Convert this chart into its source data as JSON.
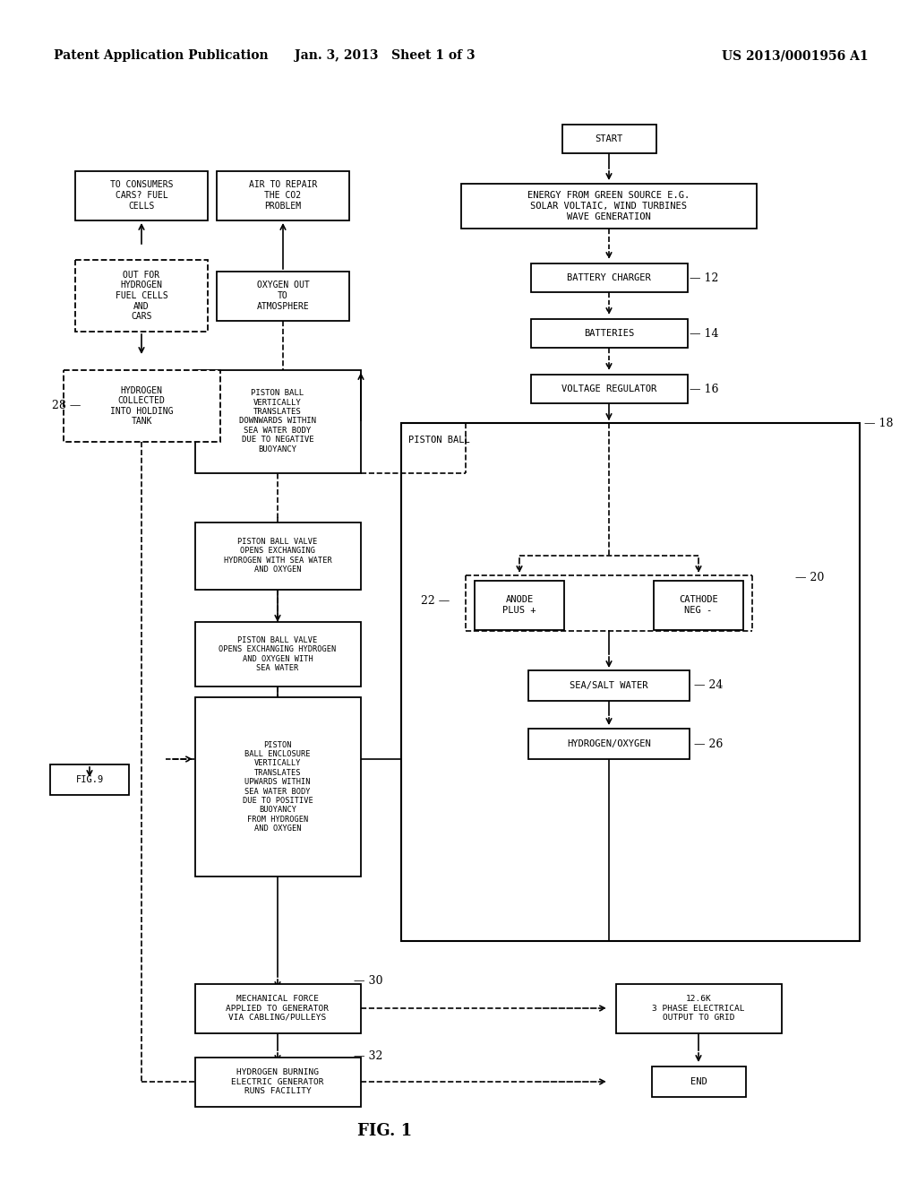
{
  "bg_color": "#ffffff",
  "header_left": "Patent Application Publication",
  "header_mid": "Jan. 3, 2013   Sheet 1 of 3",
  "header_right": "US 2013/0001956 A1",
  "fig_label": "FIG. 1"
}
